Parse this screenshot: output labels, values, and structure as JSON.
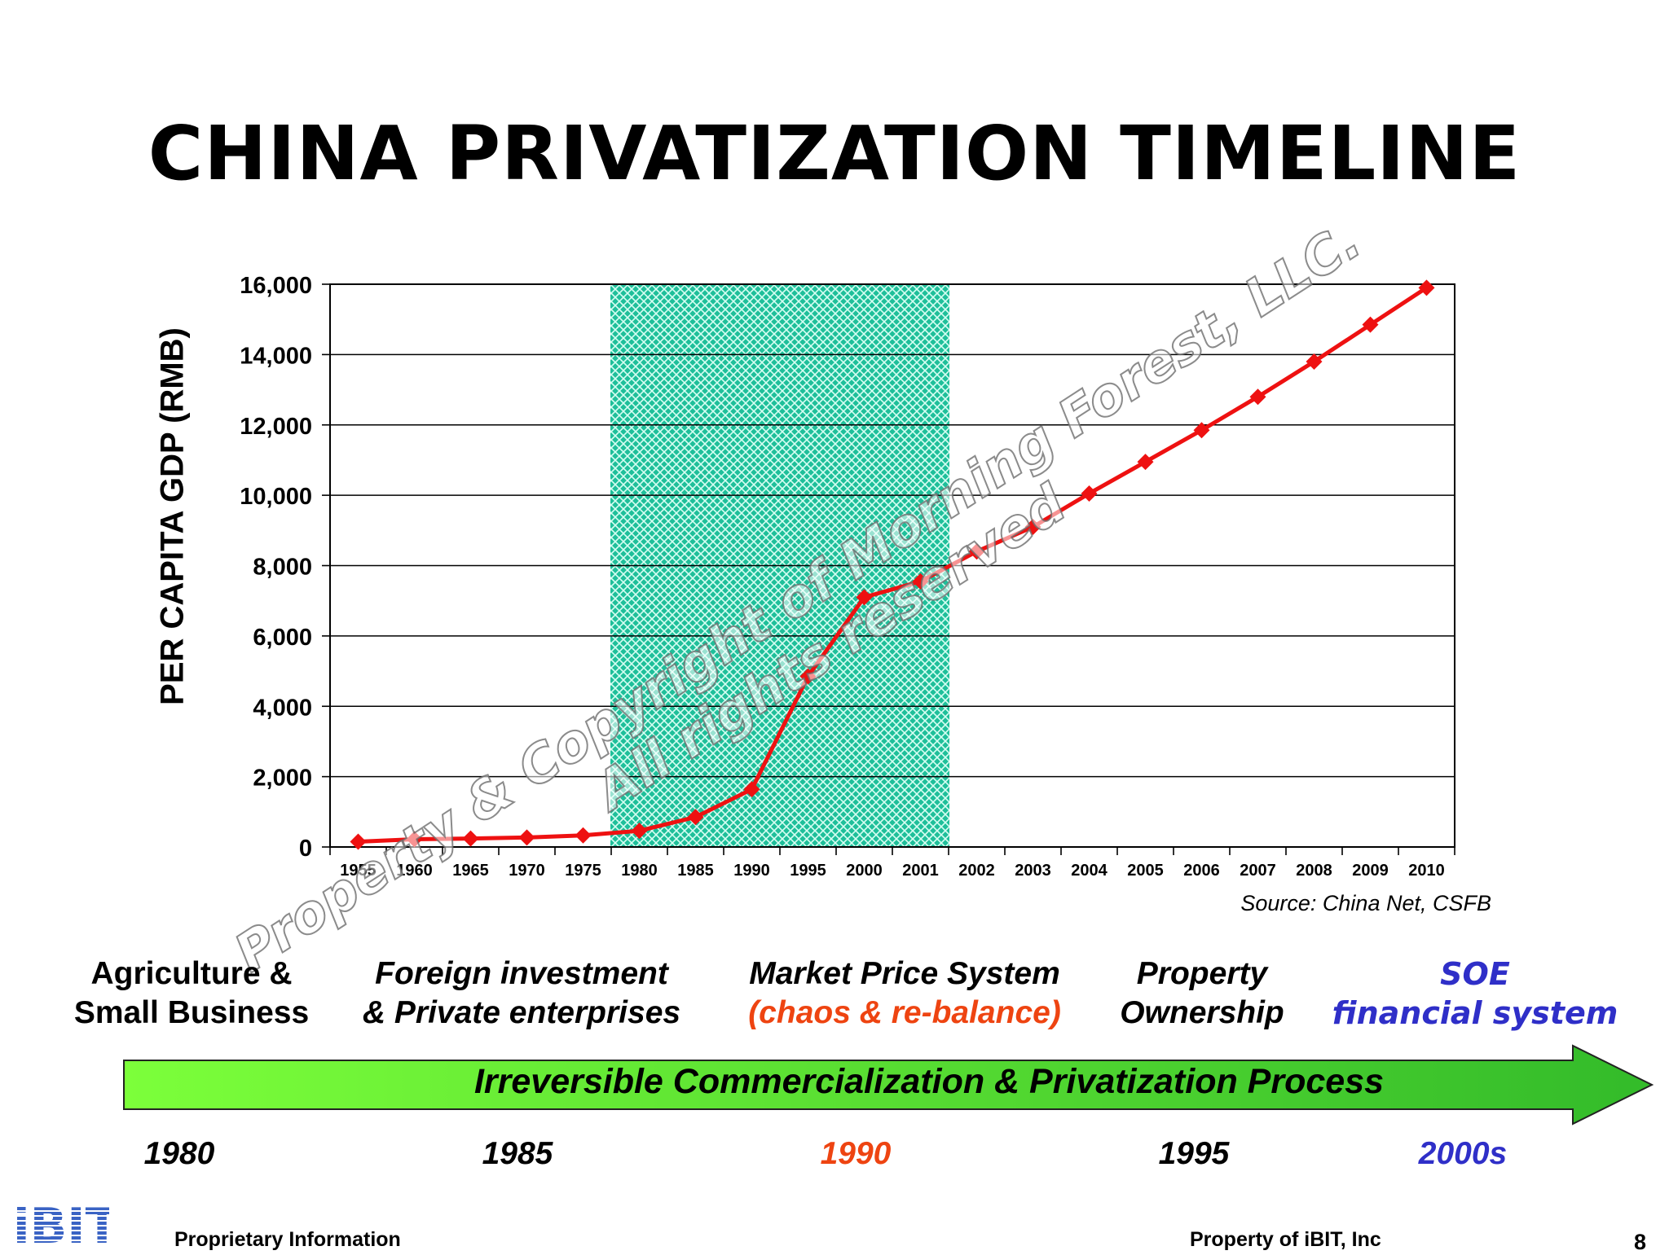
{
  "title": "CHINA PRIVATIZATION TIMELINE",
  "source": "Source: China Net, CSFB",
  "watermark": {
    "line1": "Property & Copyright of Morning Forest, LLC.",
    "line2": "All rights reserved"
  },
  "colors": {
    "line": "#ee1111",
    "marker": "#ee1111",
    "highlight": "#1fbf9a",
    "arrow_start": "#7cff3a",
    "arrow_end": "#33bb2a",
    "accent_orange": "#ee4411",
    "accent_blue": "#2f2fc8"
  },
  "chart_data": {
    "type": "line",
    "title": "",
    "xlabel": "",
    "ylabel": "PER CAPITA GDP (RMB)",
    "categories": [
      "1955",
      "1960",
      "1965",
      "1970",
      "1975",
      "1980",
      "1985",
      "1990",
      "1995",
      "2000",
      "2001",
      "2002",
      "2003",
      "2004",
      "2005",
      "2006",
      "2007",
      "2008",
      "2009",
      "2010"
    ],
    "series": [
      {
        "values": [
          150,
          220,
          240,
          270,
          330,
          460,
          850,
          1640,
          4850,
          7100,
          7550,
          8400,
          9100,
          10050,
          10950,
          11850,
          12800,
          13800,
          14850,
          15900
        ]
      }
    ],
    "ylim": [
      0,
      16000
    ],
    "yticks": [
      0,
      2000,
      4000,
      6000,
      8000,
      10000,
      12000,
      14000,
      16000
    ],
    "ytick_labels": [
      "0",
      "2,000",
      "4,000",
      "6,000",
      "8,000",
      "10,000",
      "12,000",
      "14,000",
      "16,000"
    ],
    "grid": true,
    "highlight_span": [
      "1980",
      "2001"
    ]
  },
  "phases": [
    {
      "line1": "Agriculture &",
      "line2": "Small Business"
    },
    {
      "line1": "Foreign investment",
      "line2": "& Private enterprises"
    },
    {
      "line1": "Market Price System",
      "line2": "(chaos & re-balance)"
    },
    {
      "line1": "Property",
      "line2": "Ownership"
    },
    {
      "line1": "SOE",
      "line2": "financial system"
    }
  ],
  "arrow_label": "Irreversible Commercialization & Privatization Process",
  "years": [
    "1980",
    "1985",
    "1990",
    "1995",
    "2000s"
  ],
  "footer": {
    "logo": "iBIT",
    "left": "Proprietary Information",
    "right": "Property of iBIT, Inc",
    "page": "8"
  }
}
